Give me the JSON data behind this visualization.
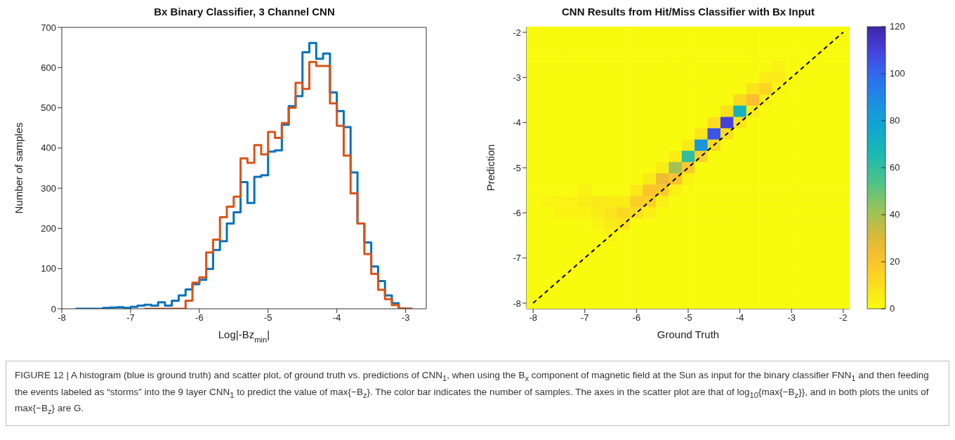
{
  "chart_data": [
    {
      "type": "histogram",
      "title": "Bx Binary Classifier, 3 Channel CNN",
      "xlabel": "Log|-Bz$_{min}$|",
      "ylabel": "Number of samples",
      "bins": [
        -7.8,
        -7.7,
        -7.6,
        -7.5,
        -7.4,
        -7.3,
        -7.2,
        -7.1,
        -7.0,
        -6.9,
        -6.8,
        -6.7,
        -6.6,
        -6.5,
        -6.4,
        -6.3,
        -6.2,
        -6.1,
        -6.0,
        -5.9,
        -5.8,
        -5.7,
        -5.6,
        -5.5,
        -5.4,
        -5.3,
        -5.2,
        -5.1,
        -5.0,
        -4.9,
        -4.8,
        -4.7,
        -4.6,
        -4.5,
        -4.4,
        -4.3,
        -4.2,
        -4.1,
        -4.0,
        -3.9,
        -3.8,
        -3.7,
        -3.6,
        -3.5,
        -3.4,
        -3.3,
        -3.2,
        -3.1,
        -3.0,
        -2.9
      ],
      "series": [
        {
          "color": "#0072bd",
          "values": [
            0,
            0,
            0,
            0,
            2,
            3,
            4,
            2,
            5,
            8,
            10,
            8,
            16,
            8,
            20,
            33,
            48,
            61,
            72,
            99,
            146,
            168,
            212,
            240,
            315,
            263,
            328,
            332,
            391,
            394,
            458,
            504,
            529,
            638,
            661,
            622,
            635,
            538,
            492,
            452,
            339,
            212,
            165,
            105,
            69,
            33,
            14,
            1,
            0
          ]
        },
        {
          "color": "#d95319",
          "bins": [
            -6.8,
            -6.7,
            -6.6,
            -6.5,
            -6.4,
            -6.3,
            -6.2,
            -6.1,
            -6.0,
            -5.9,
            -5.8,
            -5.7,
            -5.6,
            -5.5,
            -5.4,
            -5.3,
            -5.2,
            -5.1,
            -5.0,
            -4.9,
            -4.8,
            -4.7,
            -4.6,
            -4.5,
            -4.4,
            -4.3,
            -4.2,
            -4.1,
            -4.0,
            -3.9,
            -3.8,
            -3.7,
            -3.6,
            -3.5,
            -3.4,
            -3.3,
            -3.2,
            -3.1,
            -3.0,
            -2.9
          ],
          "values": [
            0,
            0,
            0,
            0,
            0,
            0,
            20,
            65,
            78,
            140,
            172,
            228,
            254,
            279,
            374,
            363,
            407,
            384,
            440,
            425,
            462,
            500,
            562,
            547,
            614,
            604,
            604,
            511,
            455,
            381,
            287,
            212,
            136,
            87,
            47,
            24,
            9,
            1,
            0
          ]
        }
      ],
      "xlim": [
        -8,
        -2.7
      ],
      "xticks": [
        -8,
        -7,
        -6,
        -5,
        -4,
        -3
      ],
      "ylim": [
        0,
        700
      ],
      "yticks": [
        0,
        100,
        200,
        300,
        400,
        500,
        600,
        700
      ],
      "annotations": [
        "FIGURE 12 | A histogram (blue is ground truth) and scatter plot, of ground truth vs. predictions of CNN$_{1}$, when using the B$_{x}$ component of magnetic field at the Sun as input for the binary classifier FNN$_{1}$ and then feeding the events labeled as “storms” into the 9 layer CNN$_{1}$ to predict the value of max{−B$_{z}$}. The color bar indicates the number of samples. The axes in the scatter plot are that of log$_{10}${max{−B$_{z}$}}, and in both plots the units of max{−B$_{z}$} are G."
      ]
    },
    {
      "type": "heatmap",
      "title": "CNN Results from Hit/Miss Classifier with Bx Input",
      "xlabel": "Ground Truth",
      "ylabel": "Prediction",
      "categories": [
        "-8",
        null,
        null,
        null,
        "-7",
        null,
        null,
        null,
        "-6",
        null,
        null,
        null,
        "-5",
        null,
        null,
        null,
        "-4",
        null,
        null,
        null,
        "-3",
        null,
        null,
        null,
        "-2"
      ],
      "y_categories": [
        "-2",
        null,
        null,
        null,
        "-3",
        null,
        null,
        null,
        "-4",
        null,
        null,
        null,
        "-5",
        null,
        null,
        null,
        "-6",
        null,
        null,
        null,
        "-7",
        null,
        null,
        null,
        "-8"
      ],
      "cells": [
        [
          0,
          0,
          0,
          0,
          0,
          0,
          0,
          0,
          0,
          0,
          0,
          0,
          0,
          0,
          0,
          0,
          0,
          0,
          0,
          0,
          0,
          0,
          0,
          0,
          0
        ],
        [
          0,
          0,
          0,
          0,
          0,
          0,
          0,
          0,
          0,
          0,
          0,
          0,
          0,
          0,
          0,
          0,
          0,
          0,
          0,
          0,
          0,
          0,
          0,
          0,
          0
        ],
        [
          0,
          0,
          0,
          0,
          0,
          0,
          0,
          0,
          0,
          0,
          0,
          0,
          0,
          0,
          0,
          0,
          0,
          0,
          0,
          0,
          0,
          0,
          0,
          0,
          0
        ],
        [
          0,
          0,
          0,
          0,
          0,
          0,
          0,
          0,
          0,
          0,
          0,
          0,
          0,
          0,
          0,
          0,
          0,
          0,
          0,
          3,
          0,
          0,
          0,
          0,
          0
        ],
        [
          0,
          0,
          0,
          0,
          0,
          0,
          0,
          0,
          0,
          0,
          0,
          0,
          0,
          0,
          0,
          0,
          0,
          0,
          5,
          6,
          0,
          0,
          0,
          0,
          0
        ],
        [
          0,
          0,
          0,
          0,
          0,
          0,
          0,
          0,
          0,
          0,
          0,
          0,
          0,
          0,
          0,
          0,
          0,
          8,
          14,
          2,
          0,
          0,
          0,
          0,
          0
        ],
        [
          0,
          0,
          0,
          0,
          0,
          0,
          0,
          0,
          0,
          0,
          0,
          0,
          0,
          0,
          0,
          0,
          12,
          22,
          4,
          0,
          0,
          0,
          0,
          0,
          0
        ],
        [
          0,
          0,
          0,
          0,
          0,
          0,
          0,
          0,
          0,
          0,
          0,
          0,
          0,
          0,
          0,
          10,
          70,
          5,
          0,
          0,
          0,
          0,
          0,
          0,
          0
        ],
        [
          0,
          0,
          0,
          0,
          0,
          0,
          0,
          0,
          0,
          0,
          0,
          0,
          0,
          0,
          10,
          110,
          8,
          0,
          0,
          0,
          0,
          0,
          0,
          0,
          0
        ],
        [
          0,
          0,
          0,
          0,
          0,
          0,
          0,
          0,
          0,
          0,
          0,
          0,
          0,
          8,
          105,
          10,
          0,
          0,
          0,
          0,
          0,
          0,
          0,
          0,
          0
        ],
        [
          0,
          0,
          0,
          0,
          0,
          0,
          0,
          0,
          0,
          0,
          0,
          0,
          6,
          85,
          12,
          0,
          0,
          0,
          0,
          0,
          0,
          0,
          0,
          0,
          0
        ],
        [
          0,
          0,
          0,
          0,
          0,
          0,
          0,
          0,
          0,
          0,
          0,
          5,
          60,
          15,
          0,
          0,
          0,
          0,
          0,
          0,
          0,
          0,
          0,
          0,
          0
        ],
        [
          0,
          0,
          0,
          0,
          0,
          0,
          0,
          0,
          0,
          0,
          5,
          40,
          18,
          0,
          0,
          0,
          0,
          0,
          0,
          0,
          0,
          0,
          0,
          0,
          0
        ],
        [
          0,
          0,
          0,
          0,
          0,
          0,
          0,
          0,
          0,
          6,
          25,
          20,
          3,
          0,
          0,
          0,
          0,
          0,
          0,
          0,
          0,
          0,
          0,
          0,
          0
        ],
        [
          0,
          0,
          0,
          0,
          3,
          0,
          0,
          0,
          6,
          20,
          18,
          4,
          0,
          0,
          0,
          0,
          0,
          0,
          0,
          0,
          0,
          0,
          0,
          0,
          0
        ],
        [
          0,
          2,
          3,
          3,
          5,
          6,
          5,
          5,
          16,
          15,
          4,
          0,
          0,
          0,
          0,
          0,
          0,
          0,
          0,
          0,
          0,
          0,
          0,
          0,
          0
        ],
        [
          0,
          0,
          2,
          3,
          3,
          5,
          8,
          12,
          10,
          4,
          0,
          0,
          0,
          0,
          0,
          0,
          0,
          0,
          0,
          0,
          0,
          0,
          0,
          0,
          0
        ],
        [
          0,
          0,
          0,
          0,
          0,
          2,
          6,
          8,
          0,
          0,
          0,
          0,
          0,
          0,
          0,
          0,
          0,
          0,
          0,
          0,
          0,
          0,
          0,
          0,
          0
        ],
        [
          0,
          0,
          0,
          0,
          0,
          0,
          3,
          0,
          0,
          0,
          0,
          0,
          0,
          0,
          0,
          0,
          0,
          0,
          0,
          0,
          0,
          0,
          0,
          0,
          0
        ],
        [
          0,
          0,
          0,
          0,
          0,
          0,
          0,
          0,
          0,
          0,
          0,
          0,
          0,
          0,
          0,
          0,
          0,
          0,
          0,
          0,
          0,
          0,
          0,
          0,
          0
        ],
        [
          0,
          0,
          0,
          0,
          0,
          0,
          0,
          0,
          0,
          0,
          0,
          0,
          0,
          0,
          0,
          0,
          0,
          0,
          0,
          0,
          0,
          0,
          0,
          0,
          0
        ],
        [
          0,
          0,
          0,
          0,
          0,
          0,
          0,
          0,
          0,
          0,
          0,
          0,
          0,
          0,
          0,
          0,
          0,
          0,
          0,
          0,
          0,
          0,
          0,
          0,
          0
        ],
        [
          0,
          0,
          0,
          0,
          0,
          0,
          0,
          0,
          0,
          0,
          0,
          0,
          0,
          0,
          0,
          0,
          0,
          0,
          0,
          0,
          0,
          0,
          0,
          0,
          0
        ],
        [
          0,
          0,
          0,
          0,
          0,
          0,
          0,
          0,
          0,
          0,
          0,
          0,
          0,
          0,
          0,
          0,
          0,
          0,
          0,
          0,
          0,
          0,
          0,
          0,
          0
        ],
        [
          0,
          0,
          0,
          0,
          0,
          0,
          0,
          0,
          0,
          0,
          0,
          0,
          0,
          0,
          0,
          0,
          0,
          0,
          0,
          0,
          0,
          0,
          0,
          0,
          0
        ]
      ],
      "clim": [
        0,
        120
      ],
      "cticks": [
        0,
        20,
        40,
        60,
        80,
        100,
        120
      ],
      "series": [
        {
          "type": "line",
          "values": [
            24,
            23,
            22,
            21,
            20,
            19,
            18,
            17,
            16,
            15,
            14,
            13,
            12,
            11,
            10,
            9,
            8,
            7,
            6,
            5,
            4,
            3,
            2,
            1,
            0
          ],
          "color": "#000000",
          "line_style": "dashed"
        }
      ]
    }
  ]
}
